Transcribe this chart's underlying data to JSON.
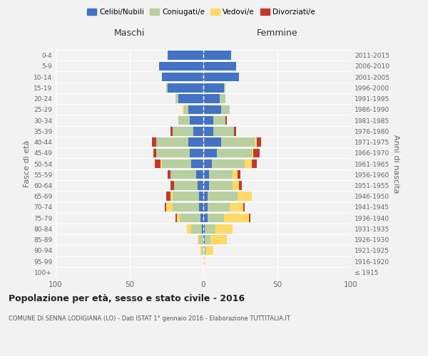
{
  "age_groups": [
    "100+",
    "95-99",
    "90-94",
    "85-89",
    "80-84",
    "75-79",
    "70-74",
    "65-69",
    "60-64",
    "55-59",
    "50-54",
    "45-49",
    "40-44",
    "35-39",
    "30-34",
    "25-29",
    "20-24",
    "15-19",
    "10-14",
    "5-9",
    "0-4"
  ],
  "birth_years": [
    "≤ 1915",
    "1916-1920",
    "1921-1925",
    "1926-1930",
    "1931-1935",
    "1936-1940",
    "1941-1945",
    "1946-1950",
    "1951-1955",
    "1956-1960",
    "1961-1965",
    "1966-1970",
    "1971-1975",
    "1976-1980",
    "1981-1985",
    "1986-1990",
    "1991-1995",
    "1996-2000",
    "2001-2005",
    "2006-2010",
    "2011-2015"
  ],
  "maschi": {
    "celibi": [
      0,
      0,
      0,
      0,
      1,
      2,
      3,
      3,
      4,
      5,
      8,
      9,
      10,
      7,
      9,
      10,
      17,
      24,
      28,
      30,
      24
    ],
    "coniugati": [
      0,
      0,
      1,
      3,
      7,
      14,
      18,
      18,
      16,
      17,
      20,
      23,
      22,
      14,
      8,
      3,
      2,
      1,
      0,
      0,
      0
    ],
    "vedovi": [
      0,
      0,
      1,
      1,
      3,
      2,
      4,
      1,
      0,
      0,
      1,
      0,
      0,
      0,
      0,
      1,
      0,
      0,
      0,
      0,
      0
    ],
    "divorziati": [
      0,
      0,
      0,
      0,
      0,
      1,
      1,
      3,
      2,
      2,
      4,
      2,
      3,
      1,
      0,
      0,
      0,
      0,
      0,
      0,
      0
    ]
  },
  "femmine": {
    "nubili": [
      0,
      0,
      0,
      1,
      1,
      3,
      3,
      3,
      4,
      4,
      6,
      9,
      12,
      7,
      7,
      12,
      11,
      14,
      24,
      22,
      19
    ],
    "coniugate": [
      0,
      0,
      2,
      4,
      7,
      11,
      15,
      20,
      16,
      16,
      22,
      24,
      23,
      14,
      8,
      6,
      4,
      1,
      0,
      0,
      0
    ],
    "vedove": [
      0,
      1,
      5,
      11,
      12,
      17,
      9,
      10,
      4,
      3,
      5,
      1,
      1,
      0,
      0,
      0,
      0,
      0,
      0,
      0,
      0
    ],
    "divorziate": [
      0,
      0,
      0,
      0,
      0,
      1,
      1,
      0,
      2,
      2,
      3,
      4,
      3,
      1,
      1,
      0,
      0,
      0,
      0,
      0,
      0
    ]
  },
  "colors": {
    "celibi": "#4472c4",
    "coniugati": "#b8cfa0",
    "vedovi": "#ffd966",
    "divorziati": "#c0392b"
  },
  "xlim": 100,
  "title": "Popolazione per età, sesso e stato civile - 2016",
  "subtitle": "COMUNE DI SENNA LODIGIANA (LO) - Dati ISTAT 1° gennaio 2016 - Elaborazione TUTTITALIA.IT",
  "ylabel_left": "Fasce di età",
  "ylabel_right": "Anni di nascita",
  "xlabel_left": "Maschi",
  "xlabel_right": "Femmine",
  "legend_labels": [
    "Celibi/Nubili",
    "Coniugati/e",
    "Vedovi/e",
    "Divorziati/e"
  ],
  "bg_color": "#f2f2f2"
}
